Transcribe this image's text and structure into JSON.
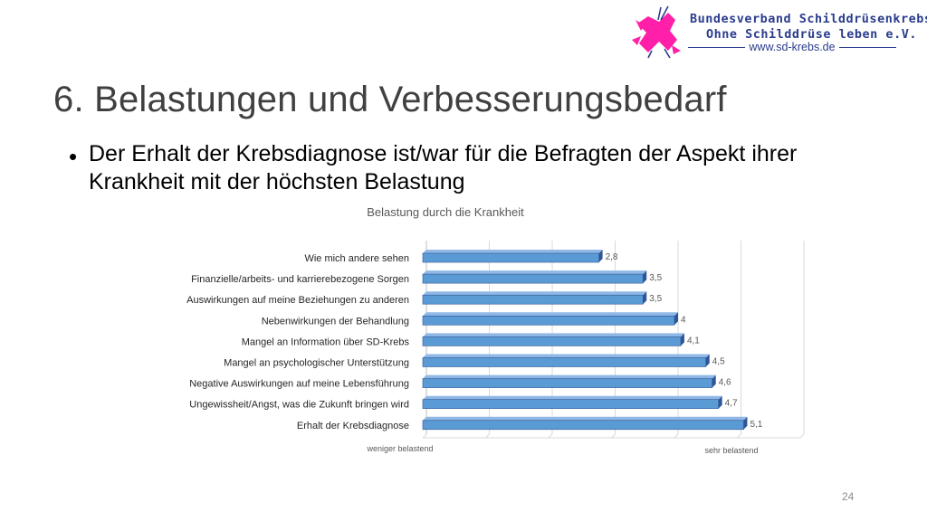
{
  "header": {
    "title": "6. Belastungen und Verbesserungsbedarf",
    "bullet": "Der Erhalt der Krebsdiagnose ist/war für die Befragten der Aspekt ihrer Krankheit mit der höchsten Belastung"
  },
  "logo": {
    "line1": "Bundesverband Schilddrüsenkrebs",
    "line2": "Ohne Schilddrüse leben e.V.",
    "line3": "www.sd-krebs.de",
    "colors": {
      "text": "#2b3c8e",
      "graphic": "#ff1fa8"
    }
  },
  "chart_data": {
    "type": "bar",
    "orientation": "horizontal",
    "title": "Belastung durch die Krankheit",
    "categories": [
      "Wie mich andere sehen",
      "Finanzielle/arbeits- und karrierebezogene Sorgen",
      "Auswirkungen auf meine Beziehungen zu anderen",
      "Nebenwirkungen der Behandlung",
      "Mangel an Information über SD-Krebs",
      "Mangel an psychologischer Unterstützung",
      "Negative Auswirkungen auf meine Lebensführung",
      "Ungewissheit/Angst, was die Zukunft bringen wird",
      "Erhalt der Krebsdiagnose"
    ],
    "values": [
      2.8,
      3.5,
      3.5,
      4,
      4.1,
      4.5,
      4.6,
      4.7,
      5.1
    ],
    "value_labels": [
      "2,8",
      "3,5",
      "3,5",
      "4",
      "4,1",
      "4,5",
      "4,6",
      "4,7",
      "5,1"
    ],
    "xlim": [
      0,
      6
    ],
    "x_axis_left_label": "weniger belastend",
    "x_axis_right_label": "sehr belastend",
    "grid": true,
    "bar_color": "#5b9bd5",
    "bar_edge_color": "#2f5597"
  },
  "footer": {
    "page_number": "24"
  }
}
